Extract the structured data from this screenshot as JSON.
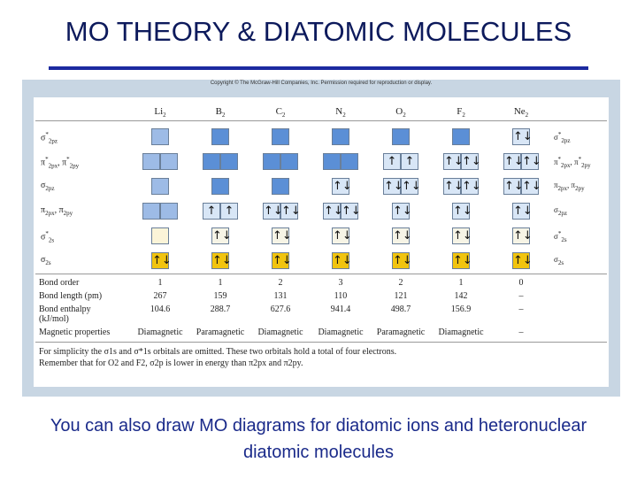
{
  "header": {
    "title": "MO THEORY & DIATOMIC MOLECULES"
  },
  "figure": {
    "copyright": "Copyright © The McGraw-Hill Companies, Inc. Permission required for reproduction or display.",
    "molecules": [
      {
        "el": "Li",
        "sub": "2"
      },
      {
        "el": "B",
        "sub": "2"
      },
      {
        "el": "C",
        "sub": "2"
      },
      {
        "el": "N",
        "sub": "2"
      },
      {
        "el": "O",
        "sub": "2"
      },
      {
        "el": "F",
        "sub": "2"
      },
      {
        "el": "Ne",
        "sub": "2"
      }
    ],
    "orbitals": [
      {
        "left": [
          {
            "sym": "σ",
            "sup": "*",
            "sub": "2pz"
          }
        ],
        "right": [
          {
            "sym": "σ",
            "sup": "*",
            "sub": "2pz"
          }
        ]
      },
      {
        "left": [
          {
            "sym": "π",
            "sup": "*",
            "sub": "2px"
          },
          {
            "pre": ", ",
            "sym": "π",
            "sup": "*",
            "sub": "2py"
          }
        ],
        "right": [
          {
            "sym": "π",
            "sup": "*",
            "sub": "2px"
          },
          {
            "pre": ", ",
            "sym": "π",
            "sup": "*",
            "sub": "2py"
          }
        ]
      },
      {
        "left": [
          {
            "sym": "σ",
            "sub": "2pz"
          }
        ],
        "right": [
          {
            "sym": "π",
            "sub": "2px"
          },
          {
            "pre": ", ",
            "sym": "π",
            "sub": "2py"
          }
        ]
      },
      {
        "left": [
          {
            "sym": "π",
            "sub": "2px"
          },
          {
            "pre": ", ",
            "sym": "π",
            "sub": "2py"
          }
        ],
        "right": [
          {
            "sym": "σ",
            "sub": "2pz"
          }
        ]
      },
      {
        "left": [
          {
            "sym": "σ",
            "sup": "*",
            "sub": "2s"
          }
        ],
        "right": [
          {
            "sym": "σ",
            "sup": "*",
            "sub": "2s"
          }
        ]
      },
      {
        "left": [
          {
            "sym": "σ",
            "sub": "2s"
          }
        ],
        "right": [
          {
            "sym": "σ",
            "sub": "2s"
          }
        ]
      }
    ],
    "diagrams": [
      [
        [
          null
        ],
        [
          null,
          null
        ],
        [
          null
        ],
        [
          null,
          null
        ],
        [
          null
        ],
        [
          "↑↓"
        ]
      ],
      [
        [
          null
        ],
        [
          null,
          null
        ],
        [
          null
        ],
        [
          "↑",
          "↑"
        ],
        [
          "↑↓"
        ],
        [
          "↑↓"
        ]
      ],
      [
        [
          null
        ],
        [
          null,
          null
        ],
        [
          null
        ],
        [
          "↑↓",
          "↑↓"
        ],
        [
          "↑↓"
        ],
        [
          "↑↓"
        ]
      ],
      [
        [
          null
        ],
        [
          null,
          null
        ],
        [
          "↑↓"
        ],
        [
          "↑↓",
          "↑↓"
        ],
        [
          "↑↓"
        ],
        [
          "↑↓"
        ]
      ],
      [
        [
          null
        ],
        [
          "↑",
          "↑"
        ],
        [
          "↑↓",
          "↑↓"
        ],
        [
          "↑↓"
        ],
        [
          "↑↓"
        ],
        [
          "↑↓"
        ]
      ],
      [
        [
          null
        ],
        [
          "↑↓",
          "↑↓"
        ],
        [
          "↑↓",
          "↑↓"
        ],
        [
          "↑↓"
        ],
        [
          "↑↓"
        ],
        [
          "↑↓"
        ]
      ],
      [
        [
          "↑↓"
        ],
        [
          "↑↓",
          "↑↓"
        ],
        [
          "↑↓",
          "↑↓"
        ],
        [
          "↑↓"
        ],
        [
          "↑↓"
        ],
        [
          "↑↓"
        ]
      ]
    ],
    "properties": [
      {
        "label": "Bond order",
        "values": [
          1,
          1,
          2,
          3,
          2,
          1,
          0
        ]
      },
      {
        "label": "Bond length (pm)",
        "values": [
          267,
          159,
          131,
          110,
          121,
          142,
          "–"
        ]
      },
      {
        "label": "Bond enthalpy",
        "unit": "(kJ/mol)",
        "values": [
          104.6,
          288.7,
          627.6,
          941.4,
          498.7,
          156.9,
          "–"
        ]
      },
      {
        "label": "Magnetic properties",
        "values": [
          "Diamagnetic",
          "Paramagnetic",
          "Diamagnetic",
          "Diamagnetic",
          "Paramagnetic",
          "Diamagnetic",
          "–"
        ]
      }
    ],
    "footnote": [
      "For simplicity the σ1s and σ*1s orbitals are omitted. These two orbitals hold a total of four electrons.",
      "Remember that for O2 and F2, σ2p is lower in energy than π2px and π2py."
    ]
  },
  "caption": "You can also draw MO diagrams for diatomic ions and heteronuclear diatomic molecules"
}
